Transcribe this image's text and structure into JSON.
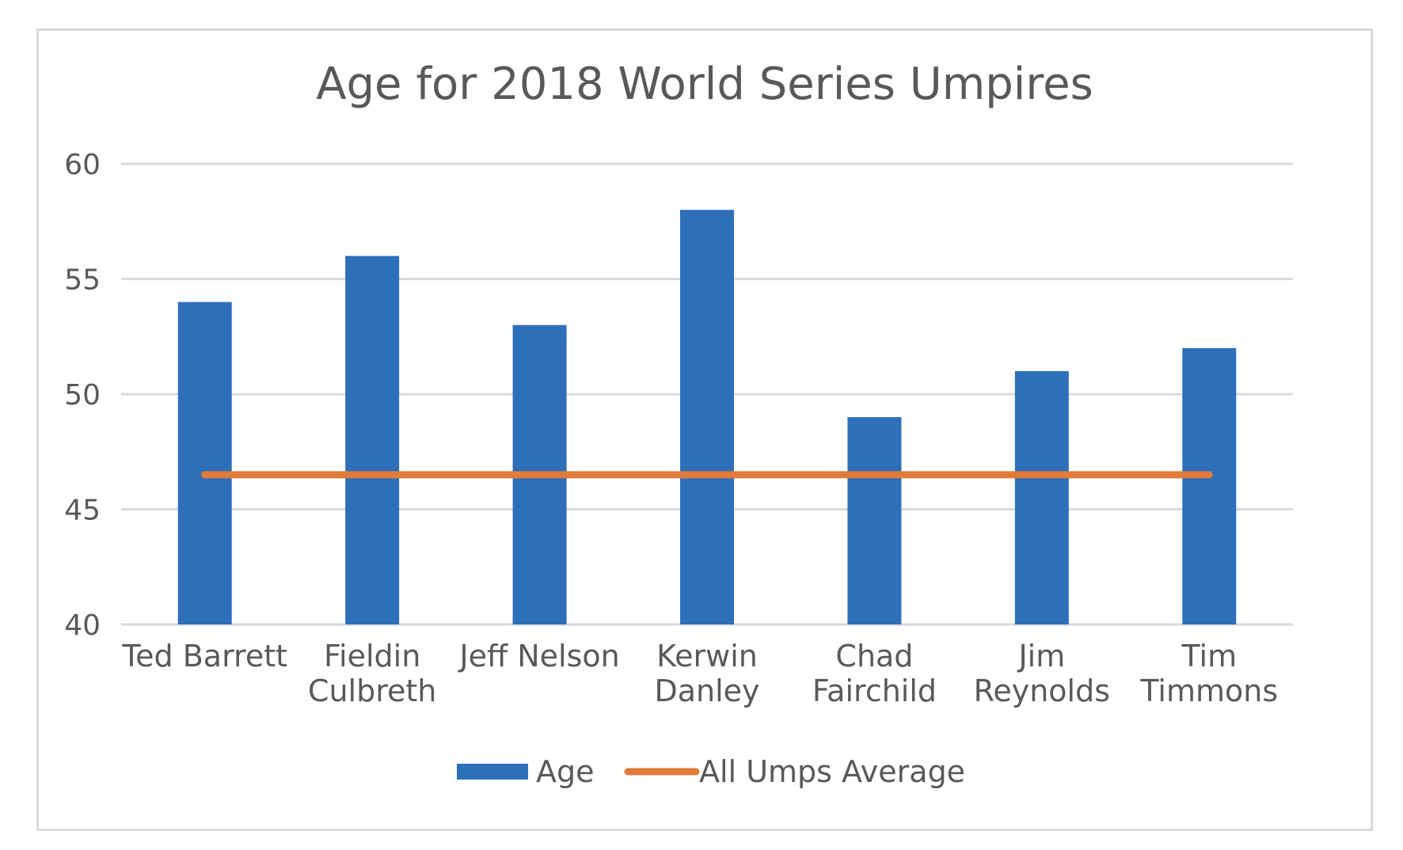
{
  "chart_data": {
    "type": "bar",
    "title": "Age for 2018 World Series Umpires",
    "categories": [
      [
        "Ted Barrett"
      ],
      [
        "Fieldin",
        "Culbreth"
      ],
      [
        "Jeff Nelson"
      ],
      [
        "Kerwin",
        "Danley"
      ],
      [
        "Chad",
        "Fairchild"
      ],
      [
        "Jim",
        "Reynolds"
      ],
      [
        "Tim",
        "Timmons"
      ]
    ],
    "series": [
      {
        "name": "Age",
        "type": "bar",
        "color": "#2e6fba",
        "values": [
          54,
          56,
          53,
          58,
          49,
          51,
          52
        ]
      },
      {
        "name": "All Umps Average",
        "type": "line",
        "color": "#e07b39",
        "values": [
          46.5,
          46.5,
          46.5,
          46.5,
          46.5,
          46.5,
          46.5
        ]
      }
    ],
    "ylim": [
      40,
      60
    ],
    "yticks": [
      40,
      45,
      50,
      55,
      60
    ],
    "xlabel": "",
    "ylabel": "",
    "grid": true,
    "legend": "bottom",
    "gridline_color": "#d9d9d9"
  }
}
